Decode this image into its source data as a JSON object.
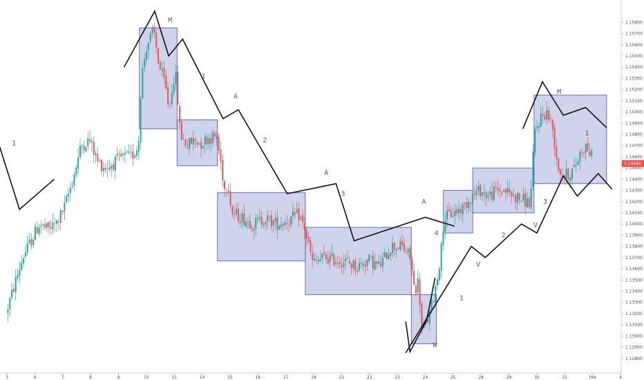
{
  "chart_data": {
    "type": "candlestick",
    "title": "",
    "ylim": [
      1.127,
      1.1595
    ],
    "y_ticks": [
      "1.15800",
      "1.15700",
      "1.15600",
      "1.15500",
      "1.15400",
      "1.15300",
      "1.15200",
      "1.15100",
      "1.15000",
      "1.14900",
      "1.14800",
      "1.14700",
      "1.14600",
      "1.14500",
      "1.14400",
      "1.14300",
      "1.14200",
      "1.14100",
      "1.14000",
      "1.13900",
      "1.13800",
      "1.13700",
      "1.13600",
      "1.13500",
      "1.13400",
      "1.13300",
      "1.13200",
      "1.13100",
      "1.13000",
      "1.12900",
      "1.12800"
    ],
    "x_ticks": [
      "3",
      "4",
      "7",
      "8",
      "9",
      "10",
      "11",
      "14",
      "15",
      "16",
      "17",
      "18",
      "21",
      "22",
      "23",
      "24",
      "25",
      "28",
      "29",
      "30",
      "31",
      "Feb",
      "4"
    ],
    "last_price": "1.14540",
    "colors": {
      "up": "#26a69a",
      "down": "#ef5350",
      "box_fill": "#9fa8da",
      "box_stroke": "#3f51b5",
      "wave": "#111111",
      "price_tag": "#ef5350"
    },
    "boxes": [
      {
        "t0": 4.75,
        "t1": 6.1,
        "lo": 1.1485,
        "hi": 1.1575
      },
      {
        "t0": 6.1,
        "t1": 7.55,
        "lo": 1.1452,
        "hi": 1.1493
      },
      {
        "t0": 7.55,
        "t1": 10.7,
        "lo": 1.1367,
        "hi": 1.1428
      },
      {
        "t0": 10.7,
        "t1": 14.5,
        "lo": 1.1337,
        "hi": 1.1397
      },
      {
        "t0": 14.5,
        "t1": 15.4,
        "lo": 1.1293,
        "hi": 1.1337
      },
      {
        "t0": 15.65,
        "t1": 16.7,
        "lo": 1.1392,
        "hi": 1.143
      },
      {
        "t0": 16.7,
        "t1": 18.9,
        "lo": 1.141,
        "hi": 1.145
      },
      {
        "t0": 18.9,
        "t1": 21.5,
        "lo": 1.1436,
        "hi": 1.1515
      }
    ],
    "wave_lines": [
      [
        [
          -0.4,
          1.148
        ],
        [
          0.45,
          1.1413
        ],
        [
          1.7,
          1.144
        ]
      ],
      [
        [
          4.2,
          1.154
        ],
        [
          5.3,
          1.159
        ],
        [
          5.8,
          1.155
        ],
        [
          6.3,
          1.1565
        ],
        [
          7.75,
          1.1494
        ],
        [
          8.3,
          1.1502
        ],
        [
          10.05,
          1.1427
        ],
        [
          11.8,
          1.1436
        ],
        [
          12.45,
          1.1385
        ],
        [
          15.0,
          1.1406
        ],
        [
          16.05,
          1.1398
        ]
      ],
      [
        [
          15.35,
          1.1352
        ],
        [
          15.05,
          1.1314
        ],
        [
          14.45,
          1.1286
        ],
        [
          14.3,
          1.1313
        ]
      ],
      [
        [
          14.3,
          1.1285
        ],
        [
          16.65,
          1.138
        ],
        [
          17.15,
          1.137
        ],
        [
          18.45,
          1.14
        ],
        [
          19.0,
          1.1392
        ],
        [
          19.95,
          1.1443
        ],
        [
          20.45,
          1.1425
        ],
        [
          21.2,
          1.1445
        ],
        [
          21.7,
          1.1431
        ]
      ],
      [
        [
          18.5,
          1.1485
        ],
        [
          19.2,
          1.1527
        ],
        [
          19.95,
          1.1497
        ],
        [
          20.75,
          1.1504
        ],
        [
          21.5,
          1.1486
        ]
      ]
    ],
    "annotations": [
      {
        "text": "1",
        "t": 0.25,
        "p": 1.147
      },
      {
        "text": "M",
        "t": 5.85,
        "p": 1.158
      },
      {
        "text": "1",
        "t": 7.05,
        "p": 1.153
      },
      {
        "text": "A",
        "t": 8.2,
        "p": 1.1512
      },
      {
        "text": "2",
        "t": 9.25,
        "p": 1.1473
      },
      {
        "text": "A",
        "t": 11.45,
        "p": 1.1444
      },
      {
        "text": "3",
        "t": 12.05,
        "p": 1.1425
      },
      {
        "text": "A",
        "t": 14.95,
        "p": 1.1418
      },
      {
        "text": "4",
        "t": 15.4,
        "p": 1.139
      },
      {
        "text": "1",
        "t": 16.3,
        "p": 1.1332
      },
      {
        "text": "W",
        "t": 15.35,
        "p": 1.129
      },
      {
        "text": "V",
        "t": 16.9,
        "p": 1.1362
      },
      {
        "text": "2",
        "t": 17.8,
        "p": 1.1388
      },
      {
        "text": "V",
        "t": 18.95,
        "p": 1.1397
      },
      {
        "text": "3",
        "t": 19.3,
        "p": 1.1418
      },
      {
        "text": "M",
        "t": 19.8,
        "p": 1.1516
      },
      {
        "text": "1",
        "t": 20.8,
        "p": 1.1479
      }
    ],
    "anchors": [
      [
        0.0,
        1.132
      ],
      [
        0.3,
        1.1345
      ],
      [
        0.6,
        1.137
      ],
      [
        0.9,
        1.1385
      ],
      [
        1.2,
        1.14
      ],
      [
        1.5,
        1.1395
      ],
      [
        1.8,
        1.14
      ],
      [
        2.1,
        1.1415
      ],
      [
        2.4,
        1.144
      ],
      [
        2.7,
        1.147
      ],
      [
        3.0,
        1.1475
      ],
      [
        3.3,
        1.1455
      ],
      [
        3.6,
        1.145
      ],
      [
        3.9,
        1.1455
      ],
      [
        4.2,
        1.146
      ],
      [
        4.5,
        1.146
      ],
      [
        4.75,
        1.147
      ],
      [
        4.85,
        1.153
      ],
      [
        5.05,
        1.156
      ],
      [
        5.3,
        1.1572
      ],
      [
        5.5,
        1.154
      ],
      [
        5.7,
        1.1525
      ],
      [
        5.85,
        1.1503
      ],
      [
        6.0,
        1.153
      ],
      [
        6.1,
        1.153
      ],
      [
        6.25,
        1.148
      ],
      [
        6.5,
        1.147
      ],
      [
        6.75,
        1.1475
      ],
      [
        7.0,
        1.1472
      ],
      [
        7.25,
        1.1477
      ],
      [
        7.55,
        1.1478
      ],
      [
        7.7,
        1.1455
      ],
      [
        7.85,
        1.143
      ],
      [
        7.95,
        1.144
      ],
      [
        8.1,
        1.141
      ],
      [
        8.5,
        1.1405
      ],
      [
        8.9,
        1.14
      ],
      [
        9.3,
        1.1405
      ],
      [
        9.7,
        1.14
      ],
      [
        10.1,
        1.1403
      ],
      [
        10.5,
        1.1408
      ],
      [
        10.7,
        1.1397
      ],
      [
        11.0,
        1.1365
      ],
      [
        11.4,
        1.137
      ],
      [
        11.8,
        1.1368
      ],
      [
        12.2,
        1.1366
      ],
      [
        12.6,
        1.1362
      ],
      [
        13.0,
        1.1368
      ],
      [
        13.4,
        1.1362
      ],
      [
        13.8,
        1.138
      ],
      [
        14.2,
        1.138
      ],
      [
        14.5,
        1.137
      ],
      [
        14.65,
        1.134
      ],
      [
        14.8,
        1.135
      ],
      [
        14.9,
        1.1305
      ],
      [
        15.05,
        1.131
      ],
      [
        15.2,
        1.132
      ],
      [
        15.45,
        1.135
      ],
      [
        15.6,
        1.1375
      ],
      [
        15.7,
        1.1405
      ],
      [
        15.9,
        1.1408
      ],
      [
        16.2,
        1.1412
      ],
      [
        16.4,
        1.1415
      ],
      [
        16.7,
        1.1425
      ],
      [
        17.0,
        1.143
      ],
      [
        17.3,
        1.1425
      ],
      [
        17.6,
        1.143
      ],
      [
        17.9,
        1.143
      ],
      [
        18.2,
        1.1425
      ],
      [
        18.5,
        1.1422
      ],
      [
        18.8,
        1.1418
      ],
      [
        18.95,
        1.148
      ],
      [
        19.15,
        1.1495
      ],
      [
        19.4,
        1.15
      ],
      [
        19.6,
        1.1485
      ],
      [
        19.8,
        1.145
      ],
      [
        20.0,
        1.1443
      ],
      [
        20.2,
        1.1445
      ],
      [
        20.4,
        1.145
      ],
      [
        20.6,
        1.1465
      ],
      [
        20.8,
        1.147
      ],
      [
        21.0,
        1.146
      ]
    ]
  }
}
